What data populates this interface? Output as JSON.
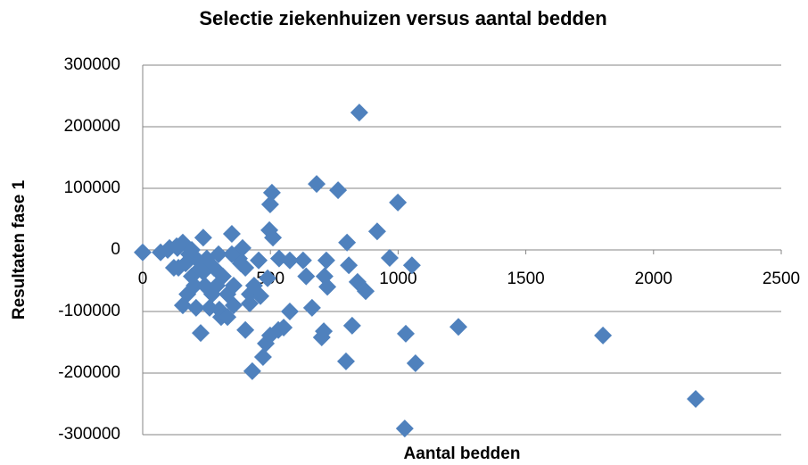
{
  "chart_data": {
    "type": "scatter",
    "title": "Selectie ziekenhuizen versus aantal bedden",
    "x_label": "Aantal bedden",
    "y_label": "Resultaten fase 1",
    "color": "#4f81bd",
    "grid": true,
    "xlim": [
      0,
      2500
    ],
    "xticks": [
      0,
      500,
      1000,
      1500,
      2000,
      2500
    ],
    "ylim": [
      -300000,
      300000
    ],
    "yticks": [
      -300000,
      -200000,
      -100000,
      0,
      100000,
      200000,
      300000
    ],
    "x": [
      0,
      70,
      105,
      133,
      157,
      848,
      681,
      765,
      999,
      506,
      499,
      496,
      510,
      800,
      918,
      967,
      1054,
      807,
      841,
      873,
      719,
      712,
      723,
      628,
      640,
      663,
      576,
      701,
      709,
      820,
      796,
      1030,
      1068,
      1236,
      1802,
      2165,
      1026,
      429,
      471,
      482,
      499,
      531,
      552,
      402,
      227,
      300,
      356,
      419,
      461,
      489,
      534,
      576,
      454,
      391,
      349,
      237,
      136,
      98,
      157,
      175,
      192,
      203,
      227,
      244,
      262,
      279,
      297,
      314,
      332,
      356,
      377,
      402,
      419,
      436,
      140,
      168,
      209,
      251,
      272,
      307,
      332,
      209,
      122,
      182,
      349,
      384,
      290,
      237,
      192
    ],
    "values": [
      -4000,
      -4000,
      3000,
      6000,
      12000,
      223000,
      107000,
      97000,
      77000,
      93000,
      74000,
      32000,
      20000,
      12000,
      30000,
      -13000,
      -25000,
      -25000,
      -52000,
      -67000,
      -17000,
      -43000,
      -60000,
      -17000,
      -43000,
      -94000,
      -100000,
      -142000,
      -132000,
      -123000,
      -181000,
      -136000,
      -184000,
      -125000,
      -139000,
      -242000,
      -290000,
      -197000,
      -174000,
      -152000,
      -139000,
      -130000,
      -126000,
      -130000,
      -135000,
      -97000,
      -90000,
      -87000,
      -75000,
      -46000,
      -14000,
      -17000,
      -17000,
      3000,
      26000,
      20000,
      3000,
      0,
      -90000,
      -72000,
      -43000,
      -58000,
      -29000,
      -58000,
      -94000,
      -29000,
      -7000,
      -43000,
      -72000,
      -58000,
      -14000,
      -29000,
      -72000,
      -58000,
      -29000,
      -22000,
      -14000,
      -14000,
      -72000,
      -109000,
      -109000,
      -94000,
      -29000,
      -7000,
      -7000,
      -22000,
      -58000,
      -36000,
      0
    ]
  }
}
